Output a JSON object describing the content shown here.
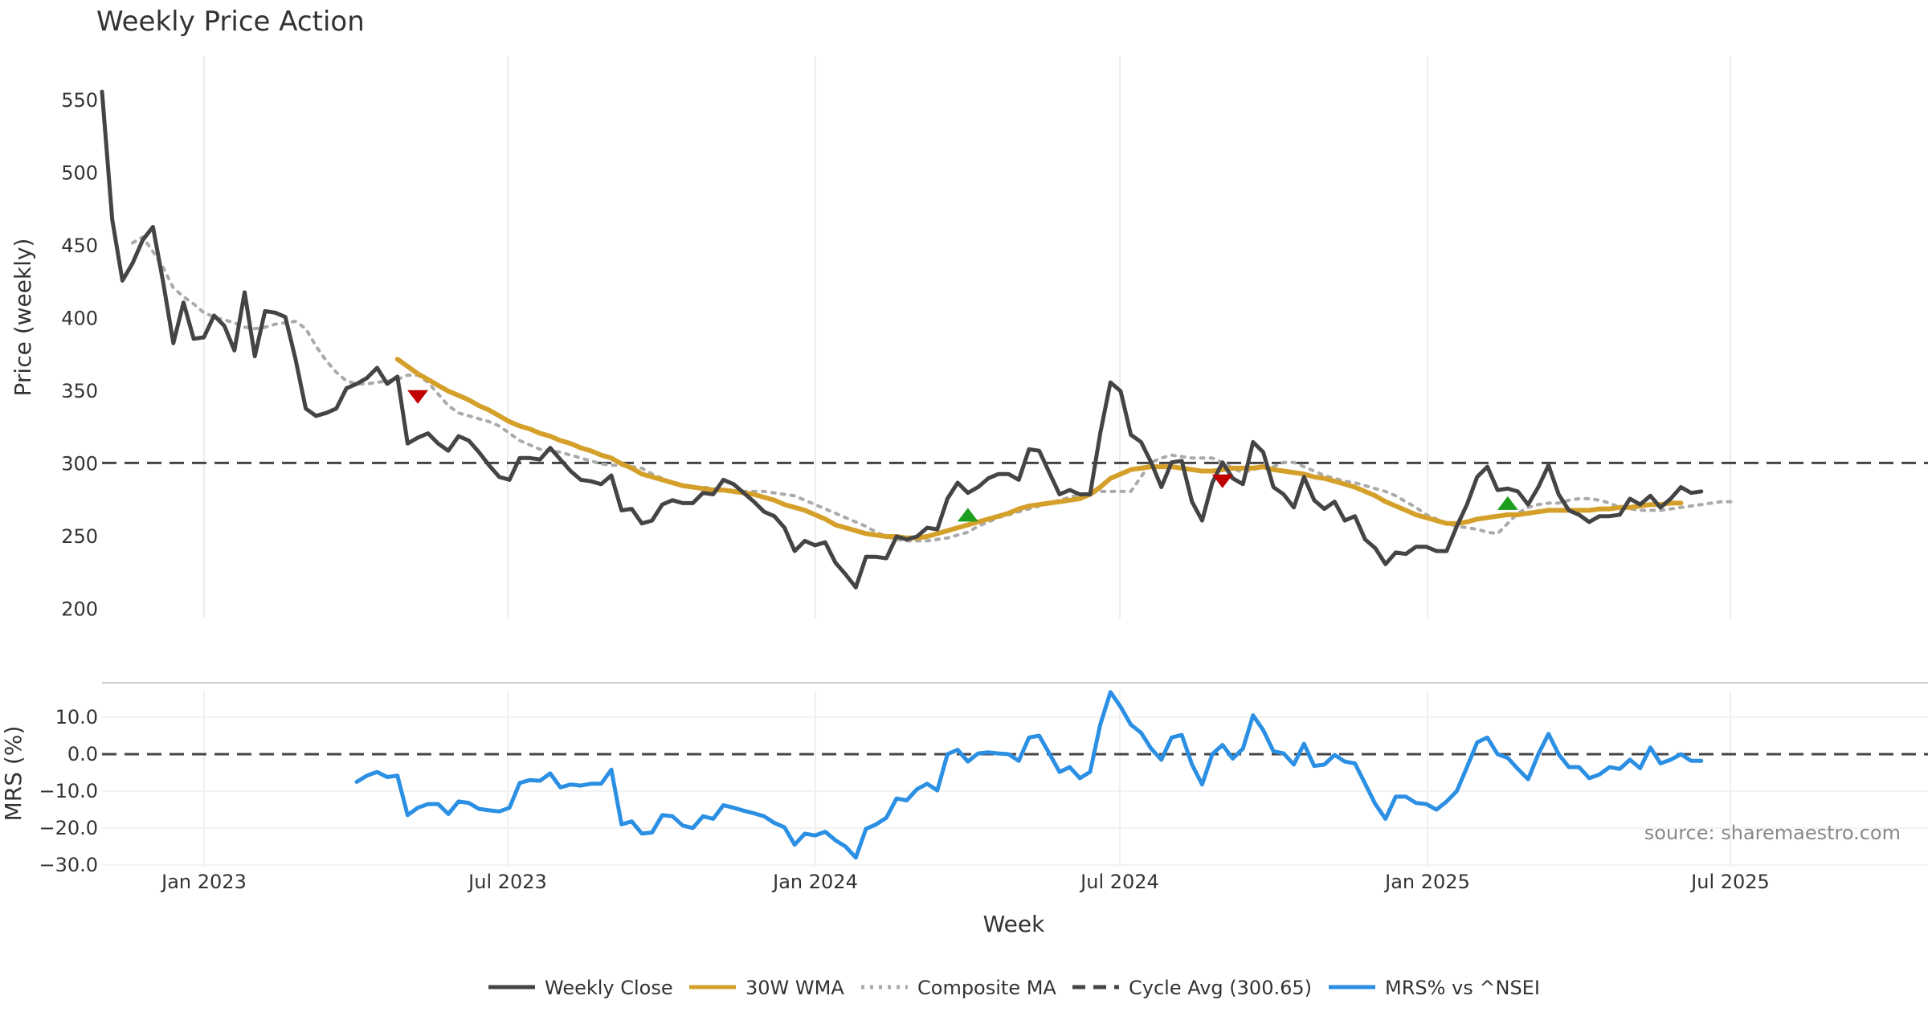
{
  "chart_data": {
    "type": "line",
    "title": "Weekly Price Action",
    "xlabel": "Week",
    "x_ticks": [
      "Jan 2023",
      "Jul 2023",
      "Jan 2024",
      "Jul 2024",
      "Jan 2025",
      "Jul 2025"
    ],
    "price_panel": {
      "ylabel": "Price (weekly)",
      "ylim": [
        195,
        560
      ],
      "y_ticks": [
        200,
        250,
        300,
        350,
        400,
        450,
        500,
        550
      ],
      "cycle_avg": 300.65,
      "series": [
        {
          "name": "Weekly Close",
          "color": "#444444",
          "style": "solid",
          "values": [
            556,
            468,
            426,
            438,
            454,
            463,
            425,
            383,
            411,
            386,
            387,
            402,
            395,
            378,
            418,
            374,
            405,
            404,
            401,
            372,
            338,
            333,
            335,
            338,
            352,
            355,
            359,
            366,
            355,
            360,
            314,
            318,
            321,
            314,
            309,
            319,
            316,
            308,
            299,
            291,
            289,
            304,
            304,
            303,
            311,
            303,
            295,
            289,
            288,
            286,
            292,
            268,
            269,
            259,
            261,
            272,
            275,
            273,
            273,
            280,
            279,
            289,
            286,
            280,
            274,
            267,
            264,
            256,
            240,
            247,
            244,
            246,
            232,
            224,
            215,
            236,
            236,
            235,
            250,
            248,
            250,
            256,
            255,
            276,
            287,
            280,
            284,
            290,
            293,
            293,
            289,
            310,
            309,
            294,
            279,
            282,
            279,
            279,
            321,
            356,
            350,
            320,
            315,
            301,
            284,
            301,
            302,
            274,
            261,
            287,
            301,
            290,
            286,
            315,
            308,
            284,
            279,
            270,
            291,
            275,
            269,
            274,
            261,
            264,
            248,
            242,
            231,
            239,
            238,
            243,
            243,
            240,
            240,
            257,
            272,
            291,
            298,
            282,
            283,
            281,
            272,
            284,
            299,
            279,
            268,
            265,
            260,
            264,
            264,
            265,
            276,
            272,
            278,
            270,
            276,
            284,
            280,
            281
          ]
        },
        {
          "name": "30W WMA",
          "color": "#D4A02A",
          "style": "solid",
          "start_index": 29,
          "values": [
            372,
            367,
            362,
            358,
            354,
            350,
            347,
            344,
            340,
            337,
            333,
            329,
            326,
            324,
            321,
            319,
            316,
            314,
            311,
            309,
            306,
            304,
            300,
            297,
            293,
            291,
            289,
            287,
            285,
            284,
            283,
            282,
            282,
            281,
            280,
            279,
            277,
            275,
            272,
            270,
            268,
            265,
            262,
            258,
            256,
            254,
            252,
            251,
            250,
            250,
            249,
            249,
            250,
            252,
            254,
            256,
            258,
            260,
            262,
            264,
            266,
            269,
            271,
            272,
            273,
            274,
            275,
            276,
            279,
            284,
            290,
            293,
            296,
            297,
            298,
            298,
            298,
            297,
            296,
            295,
            295,
            296,
            297,
            297,
            297,
            298,
            296,
            295,
            294,
            293,
            291,
            290,
            288,
            286,
            284,
            281,
            278,
            274,
            271,
            268,
            265,
            263,
            261,
            259,
            259,
            260,
            262,
            263,
            264,
            265,
            265,
            266,
            267,
            268,
            268,
            268,
            268,
            268,
            269,
            269,
            270,
            270,
            271,
            272,
            272,
            273,
            273
          ]
        },
        {
          "name": "Composite MA",
          "color": "#AAAAAA",
          "style": "dotted",
          "start_index": 3,
          "values": [
            452,
            456,
            446,
            435,
            421,
            415,
            410,
            404,
            401,
            399,
            397,
            394,
            393,
            394,
            396,
            397,
            398,
            393,
            381,
            371,
            363,
            357,
            355,
            355,
            356,
            357,
            358,
            361,
            361,
            356,
            348,
            340,
            335,
            333,
            331,
            329,
            326,
            321,
            316,
            313,
            310,
            309,
            308,
            306,
            304,
            302,
            300,
            299,
            299,
            298,
            297,
            293,
            290,
            287,
            285,
            284,
            284,
            283,
            282,
            281,
            281,
            281,
            281,
            280,
            279,
            278,
            275,
            272,
            269,
            266,
            263,
            260,
            257,
            253,
            250,
            248,
            247,
            247,
            247,
            248,
            249,
            251,
            253,
            257,
            260,
            263,
            265,
            267,
            269,
            271,
            273,
            275,
            277,
            279,
            280,
            281,
            281,
            281,
            281,
            291,
            301,
            304,
            306,
            305,
            304,
            304,
            304,
            301,
            297,
            294,
            296,
            298,
            298,
            301,
            301,
            298,
            295,
            292,
            290,
            288,
            287,
            285,
            283,
            281,
            278,
            274,
            270,
            265,
            262,
            259,
            257,
            256,
            255,
            253,
            252,
            259,
            266,
            270,
            272,
            273,
            273,
            275,
            276,
            276,
            275,
            273,
            270,
            269,
            268,
            268,
            268,
            269,
            270,
            271,
            272,
            273,
            274,
            274
          ]
        }
      ],
      "markers": [
        {
          "type": "sell",
          "color": "#C00000",
          "index": 31,
          "value": 346
        },
        {
          "type": "buy",
          "color": "#1E9E1E",
          "index": 85,
          "value": 265
        },
        {
          "type": "sell",
          "color": "#C00000",
          "index": 110,
          "value": 288
        },
        {
          "type": "buy",
          "color": "#1E9E1E",
          "index": 138,
          "value": 273
        }
      ]
    },
    "mrs_panel": {
      "ylabel": "MRS (%)",
      "ylim": [
        -30,
        18
      ],
      "y_ticks": [
        "10.0",
        "0.0",
        "−10.0",
        "−20.0",
        "−30.0"
      ],
      "y_tick_values": [
        10,
        0,
        -10,
        -20,
        -30
      ],
      "zero_line": 0,
      "series": [
        {
          "name": "MRS% vs ^NSEI",
          "color": "#2B8FE3",
          "style": "solid",
          "start_index": 25,
          "values": [
            -7.5,
            -5.8,
            -4.8,
            -6.2,
            -5.8,
            -16.5,
            -14.5,
            -13.5,
            -13.5,
            -16.2,
            -12.8,
            -13.2,
            -14.8,
            -15.2,
            -15.5,
            -14.5,
            -7.8,
            -7,
            -7.2,
            -5.2,
            -9,
            -8.2,
            -8.5,
            -8,
            -8,
            -4.2,
            -19,
            -18.2,
            -21.5,
            -21.2,
            -16.5,
            -16.8,
            -19.3,
            -20,
            -16.8,
            -17.5,
            -13.8,
            -14.5,
            -15.3,
            -16,
            -16.8,
            -18.6,
            -19.8,
            -24.5,
            -21.5,
            -22,
            -21,
            -23.3,
            -25,
            -28,
            -20.2,
            -19,
            -17.2,
            -12,
            -12.5,
            -9.5,
            -8,
            -9.8,
            0,
            1.2,
            -2,
            0.2,
            0.5,
            0.2,
            0,
            -1.8,
            4.5,
            5,
            0.2,
            -4.8,
            -3.5,
            -6.5,
            -4.8,
            8,
            16.8,
            12.8,
            8,
            5.8,
            1.5,
            -1.5,
            4.5,
            5.2,
            -2.8,
            -8.2,
            0,
            2.5,
            -1.2,
            1.5,
            10.5,
            6.5,
            0.8,
            0.2,
            -2.8,
            2.8,
            -3.2,
            -2.8,
            -0.2,
            -2,
            -2.5,
            -8,
            -13.5,
            -17.5,
            -11.5,
            -11.5,
            -13.2,
            -13.5,
            -15,
            -12.8,
            -10,
            -3.5,
            3.2,
            4.5,
            0,
            -1,
            -4,
            -6.8,
            0,
            5.5,
            0,
            -3.5,
            -3.5,
            -6.5,
            -5.5,
            -3.5,
            -4,
            -1.5,
            -3.8,
            1.8,
            -2.5,
            -1.5,
            0,
            -1.8,
            -1.8
          ]
        }
      ]
    },
    "legend": [
      {
        "label": "Weekly Close",
        "color": "#444444",
        "style": "solid"
      },
      {
        "label": "30W WMA",
        "color": "#D4A02A",
        "style": "solid"
      },
      {
        "label": "Composite MA",
        "color": "#AAAAAA",
        "style": "dotted"
      },
      {
        "label": "Cycle Avg (300.65)",
        "color": "#444444",
        "style": "dashed"
      },
      {
        "label": "MRS% vs ^NSEI",
        "color": "#2B8FE3",
        "style": "solid"
      }
    ],
    "source": "source: sharemaestro.com"
  }
}
